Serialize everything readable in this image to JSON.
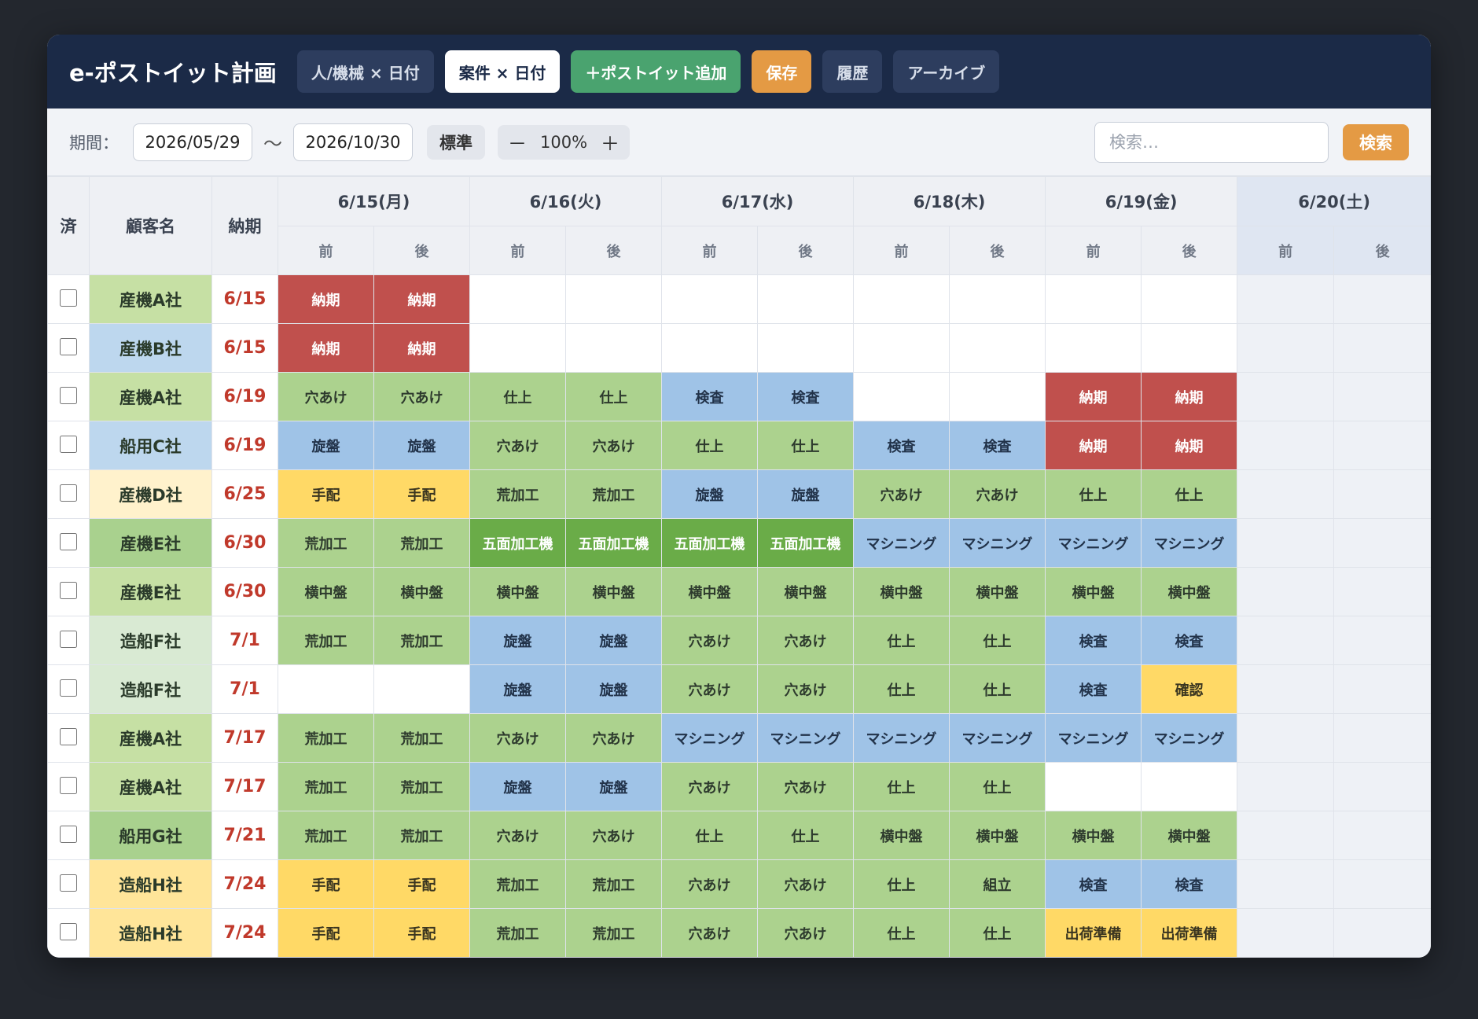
{
  "header": {
    "title": "e-ポストイット計画",
    "buttons": [
      "人/機械 × 日付",
      "案件 × 日付",
      "＋ポストイット追加",
      "保存",
      "履歴",
      "アーカイブ"
    ]
  },
  "toolbar": {
    "period_label": "期間：",
    "start_date": "2026/05/29",
    "tilde": "〜",
    "end_date": "2026/10/30",
    "standard_label": "標準",
    "zoom_minus": "－",
    "zoom_value": "100%",
    "zoom_plus": "＋",
    "search_placeholder": "検索…",
    "search_label": "検索"
  },
  "grid": {
    "col_done": "済",
    "col_customer": "顧客名",
    "col_due": "納期",
    "half_am": "前",
    "half_pm": "後",
    "days": [
      "6/15(月)",
      "6/16(火)",
      "6/17(水)",
      "6/18(木)",
      "6/19(金)",
      "6/20(土)"
    ],
    "colors": {
      "red": "#c0504d",
      "lgreen": "#acd28e",
      "dgreen": "#6aac48",
      "blue": "#9fc3e7",
      "yellow": "#ffd966"
    },
    "rows": [
      {
        "customer": "産機A社",
        "bg": "#c6e0a4",
        "due": "6/15",
        "cells": [
          [
            "納期",
            "red"
          ],
          [
            "納期",
            "red"
          ],
          [
            "",
            ""
          ],
          [
            "",
            ""
          ],
          [
            "",
            ""
          ],
          [
            "",
            ""
          ],
          [
            "",
            ""
          ],
          [
            "",
            ""
          ],
          [
            "",
            ""
          ],
          [
            "",
            ""
          ]
        ]
      },
      {
        "customer": "産機B社",
        "bg": "#bdd7ee",
        "due": "6/15",
        "cells": [
          [
            "納期",
            "red"
          ],
          [
            "納期",
            "red"
          ],
          [
            "",
            ""
          ],
          [
            "",
            ""
          ],
          [
            "",
            ""
          ],
          [
            "",
            ""
          ],
          [
            "",
            ""
          ],
          [
            "",
            ""
          ],
          [
            "",
            ""
          ],
          [
            "",
            ""
          ]
        ]
      },
      {
        "customer": "産機A社",
        "bg": "#c6e0a4",
        "due": "6/19",
        "cells": [
          [
            "穴あけ",
            "lgreen"
          ],
          [
            "穴あけ",
            "lgreen"
          ],
          [
            "仕上",
            "lgreen"
          ],
          [
            "仕上",
            "lgreen"
          ],
          [
            "検査",
            "blue"
          ],
          [
            "検査",
            "blue"
          ],
          [
            "",
            ""
          ],
          [
            "",
            ""
          ],
          [
            "納期",
            "red"
          ],
          [
            "納期",
            "red"
          ]
        ]
      },
      {
        "customer": "船用C社",
        "bg": "#bdd7ee",
        "due": "6/19",
        "cells": [
          [
            "旋盤",
            "blue"
          ],
          [
            "旋盤",
            "blue"
          ],
          [
            "穴あけ",
            "lgreen"
          ],
          [
            "穴あけ",
            "lgreen"
          ],
          [
            "仕上",
            "lgreen"
          ],
          [
            "仕上",
            "lgreen"
          ],
          [
            "検査",
            "blue"
          ],
          [
            "検査",
            "blue"
          ],
          [
            "納期",
            "red"
          ],
          [
            "納期",
            "red"
          ]
        ]
      },
      {
        "customer": "産機D社",
        "bg": "#fff2cc",
        "due": "6/25",
        "cells": [
          [
            "手配",
            "yellow"
          ],
          [
            "手配",
            "yellow"
          ],
          [
            "荒加工",
            "lgreen"
          ],
          [
            "荒加工",
            "lgreen"
          ],
          [
            "旋盤",
            "blue"
          ],
          [
            "旋盤",
            "blue"
          ],
          [
            "穴あけ",
            "lgreen"
          ],
          [
            "穴あけ",
            "lgreen"
          ],
          [
            "仕上",
            "lgreen"
          ],
          [
            "仕上",
            "lgreen"
          ]
        ]
      },
      {
        "customer": "産機E社",
        "bg": "#a9d18e",
        "due": "6/30",
        "cells": [
          [
            "荒加工",
            "lgreen"
          ],
          [
            "荒加工",
            "lgreen"
          ],
          [
            "五面加工機",
            "dgreen"
          ],
          [
            "五面加工機",
            "dgreen"
          ],
          [
            "五面加工機",
            "dgreen"
          ],
          [
            "五面加工機",
            "dgreen"
          ],
          [
            "マシニング",
            "blue"
          ],
          [
            "マシニング",
            "blue"
          ],
          [
            "マシニング",
            "blue"
          ],
          [
            "マシニング",
            "blue"
          ]
        ]
      },
      {
        "customer": "産機E社",
        "bg": "#c6e0a4",
        "due": "6/30",
        "cells": [
          [
            "横中盤",
            "lgreen"
          ],
          [
            "横中盤",
            "lgreen"
          ],
          [
            "横中盤",
            "lgreen"
          ],
          [
            "横中盤",
            "lgreen"
          ],
          [
            "横中盤",
            "lgreen"
          ],
          [
            "横中盤",
            "lgreen"
          ],
          [
            "横中盤",
            "lgreen"
          ],
          [
            "横中盤",
            "lgreen"
          ],
          [
            "横中盤",
            "lgreen"
          ],
          [
            "横中盤",
            "lgreen"
          ]
        ]
      },
      {
        "customer": "造船F社",
        "bg": "#d9ead3",
        "due": "7/1",
        "cells": [
          [
            "荒加工",
            "lgreen"
          ],
          [
            "荒加工",
            "lgreen"
          ],
          [
            "旋盤",
            "blue"
          ],
          [
            "旋盤",
            "blue"
          ],
          [
            "穴あけ",
            "lgreen"
          ],
          [
            "穴あけ",
            "lgreen"
          ],
          [
            "仕上",
            "lgreen"
          ],
          [
            "仕上",
            "lgreen"
          ],
          [
            "検査",
            "blue"
          ],
          [
            "検査",
            "blue"
          ]
        ]
      },
      {
        "customer": "造船F社",
        "bg": "#d9ead3",
        "due": "7/1",
        "cells": [
          [
            "",
            ""
          ],
          [
            "",
            ""
          ],
          [
            "旋盤",
            "blue"
          ],
          [
            "旋盤",
            "blue"
          ],
          [
            "穴あけ",
            "lgreen"
          ],
          [
            "穴あけ",
            "lgreen"
          ],
          [
            "仕上",
            "lgreen"
          ],
          [
            "仕上",
            "lgreen"
          ],
          [
            "検査",
            "blue"
          ],
          [
            "確認",
            "yellow"
          ]
        ]
      },
      {
        "customer": "産機A社",
        "bg": "#c6e0a4",
        "due": "7/17",
        "cells": [
          [
            "荒加工",
            "lgreen"
          ],
          [
            "荒加工",
            "lgreen"
          ],
          [
            "穴あけ",
            "lgreen"
          ],
          [
            "穴あけ",
            "lgreen"
          ],
          [
            "マシニング",
            "blue"
          ],
          [
            "マシニング",
            "blue"
          ],
          [
            "マシニング",
            "blue"
          ],
          [
            "マシニング",
            "blue"
          ],
          [
            "マシニング",
            "blue"
          ],
          [
            "マシニング",
            "blue"
          ]
        ]
      },
      {
        "customer": "産機A社",
        "bg": "#c6e0a4",
        "due": "7/17",
        "cells": [
          [
            "荒加工",
            "lgreen"
          ],
          [
            "荒加工",
            "lgreen"
          ],
          [
            "旋盤",
            "blue"
          ],
          [
            "旋盤",
            "blue"
          ],
          [
            "穴あけ",
            "lgreen"
          ],
          [
            "穴あけ",
            "lgreen"
          ],
          [
            "仕上",
            "lgreen"
          ],
          [
            "仕上",
            "lgreen"
          ],
          [
            "",
            ""
          ],
          [
            "",
            ""
          ]
        ]
      },
      {
        "customer": "船用G社",
        "bg": "#a9d18e",
        "due": "7/21",
        "cells": [
          [
            "荒加工",
            "lgreen"
          ],
          [
            "荒加工",
            "lgreen"
          ],
          [
            "穴あけ",
            "lgreen"
          ],
          [
            "穴あけ",
            "lgreen"
          ],
          [
            "仕上",
            "lgreen"
          ],
          [
            "仕上",
            "lgreen"
          ],
          [
            "横中盤",
            "lgreen"
          ],
          [
            "横中盤",
            "lgreen"
          ],
          [
            "横中盤",
            "lgreen"
          ],
          [
            "横中盤",
            "lgreen"
          ]
        ]
      },
      {
        "customer": "造船H社",
        "bg": "#ffe599",
        "due": "7/24",
        "cells": [
          [
            "手配",
            "yellow"
          ],
          [
            "手配",
            "yellow"
          ],
          [
            "荒加工",
            "lgreen"
          ],
          [
            "荒加工",
            "lgreen"
          ],
          [
            "穴あけ",
            "lgreen"
          ],
          [
            "穴あけ",
            "lgreen"
          ],
          [
            "仕上",
            "lgreen"
          ],
          [
            "組立",
            "lgreen"
          ],
          [
            "検査",
            "blue"
          ],
          [
            "検査",
            "blue"
          ]
        ]
      },
      {
        "customer": "造船H社",
        "bg": "#ffe599",
        "due": "7/24",
        "cells": [
          [
            "手配",
            "yellow"
          ],
          [
            "手配",
            "yellow"
          ],
          [
            "荒加工",
            "lgreen"
          ],
          [
            "荒加工",
            "lgreen"
          ],
          [
            "穴あけ",
            "lgreen"
          ],
          [
            "穴あけ",
            "lgreen"
          ],
          [
            "仕上",
            "lgreen"
          ],
          [
            "仕上",
            "lgreen"
          ],
          [
            "出荷準備",
            "yellow"
          ],
          [
            "出荷準備",
            "yellow"
          ]
        ]
      }
    ]
  }
}
